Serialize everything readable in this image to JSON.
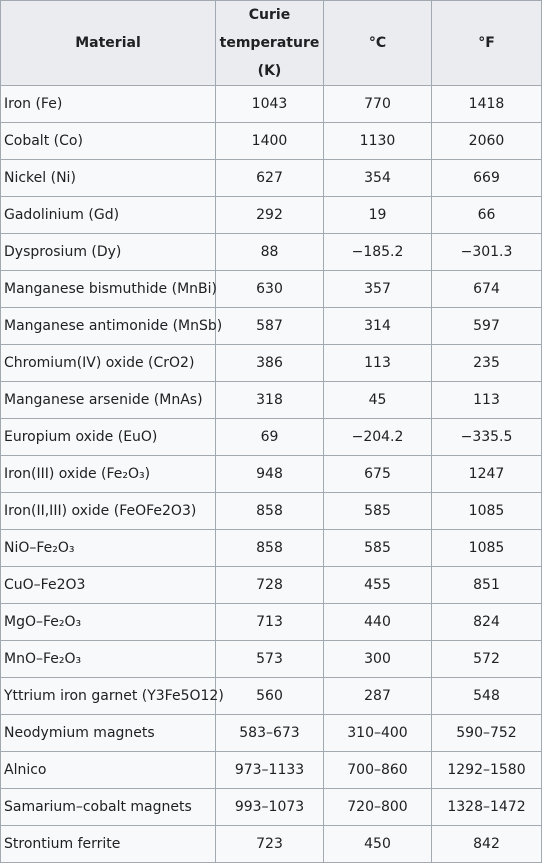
{
  "headers": {
    "material": "Material",
    "curie": "Curie temperature (K)",
    "celsius": "°C",
    "fahrenheit": "°F"
  },
  "rows": [
    {
      "material": "Iron (Fe)",
      "k": "1043",
      "c": "770",
      "f": "1418"
    },
    {
      "material": "Cobalt (Co)",
      "k": "1400",
      "c": "1130",
      "f": "2060"
    },
    {
      "material": "Nickel (Ni)",
      "k": "627",
      "c": "354",
      "f": "669"
    },
    {
      "material": "Gadolinium (Gd)",
      "k": "292",
      "c": "19",
      "f": "66"
    },
    {
      "material": "Dysprosium (Dy)",
      "k": "88",
      "c": "−185.2",
      "f": "−301.3"
    },
    {
      "material": "Manganese bismuthide (MnBi)",
      "k": "630",
      "c": "357",
      "f": "674"
    },
    {
      "material": "Manganese antimonide (MnSb)",
      "k": "587",
      "c": "314",
      "f": "597"
    },
    {
      "material": "Chromium(IV) oxide (CrO2)",
      "k": "386",
      "c": "113",
      "f": "235"
    },
    {
      "material": "Manganese arsenide (MnAs)",
      "k": "318",
      "c": "45",
      "f": "113"
    },
    {
      "material": "Europium oxide (EuO)",
      "k": "69",
      "c": "−204.2",
      "f": "−335.5"
    },
    {
      "material": "Iron(III) oxide (Fe₂O₃)",
      "k": "948",
      "c": "675",
      "f": "1247"
    },
    {
      "material": "Iron(II,III) oxide (FeOFe2O3)",
      "k": "858",
      "c": "585",
      "f": "1085"
    },
    {
      "material": "NiO–Fe₂O₃",
      "k": "858",
      "c": "585",
      "f": "1085"
    },
    {
      "material": "CuO–Fe2O3",
      "k": "728",
      "c": "455",
      "f": "851"
    },
    {
      "material": "MgO–Fe₂O₃",
      "k": "713",
      "c": "440",
      "f": "824"
    },
    {
      "material": "MnO–Fe₂O₃",
      "k": "573",
      "c": "300",
      "f": "572"
    },
    {
      "material": "Yttrium iron garnet (Y3Fe5O12)",
      "k": "560",
      "c": "287",
      "f": "548"
    },
    {
      "material": "Neodymium magnets",
      "k": "583–673",
      "c": "310–400",
      "f": "590–752"
    },
    {
      "material": "Alnico",
      "k": "973–1133",
      "c": "700–860",
      "f": "1292–1580"
    },
    {
      "material": "Samarium–cobalt magnets",
      "k": "993–1073",
      "c": "720–800",
      "f": "1328–1472"
    },
    {
      "material": "Strontium ferrite",
      "k": "723",
      "c": "450",
      "f": "842"
    }
  ]
}
